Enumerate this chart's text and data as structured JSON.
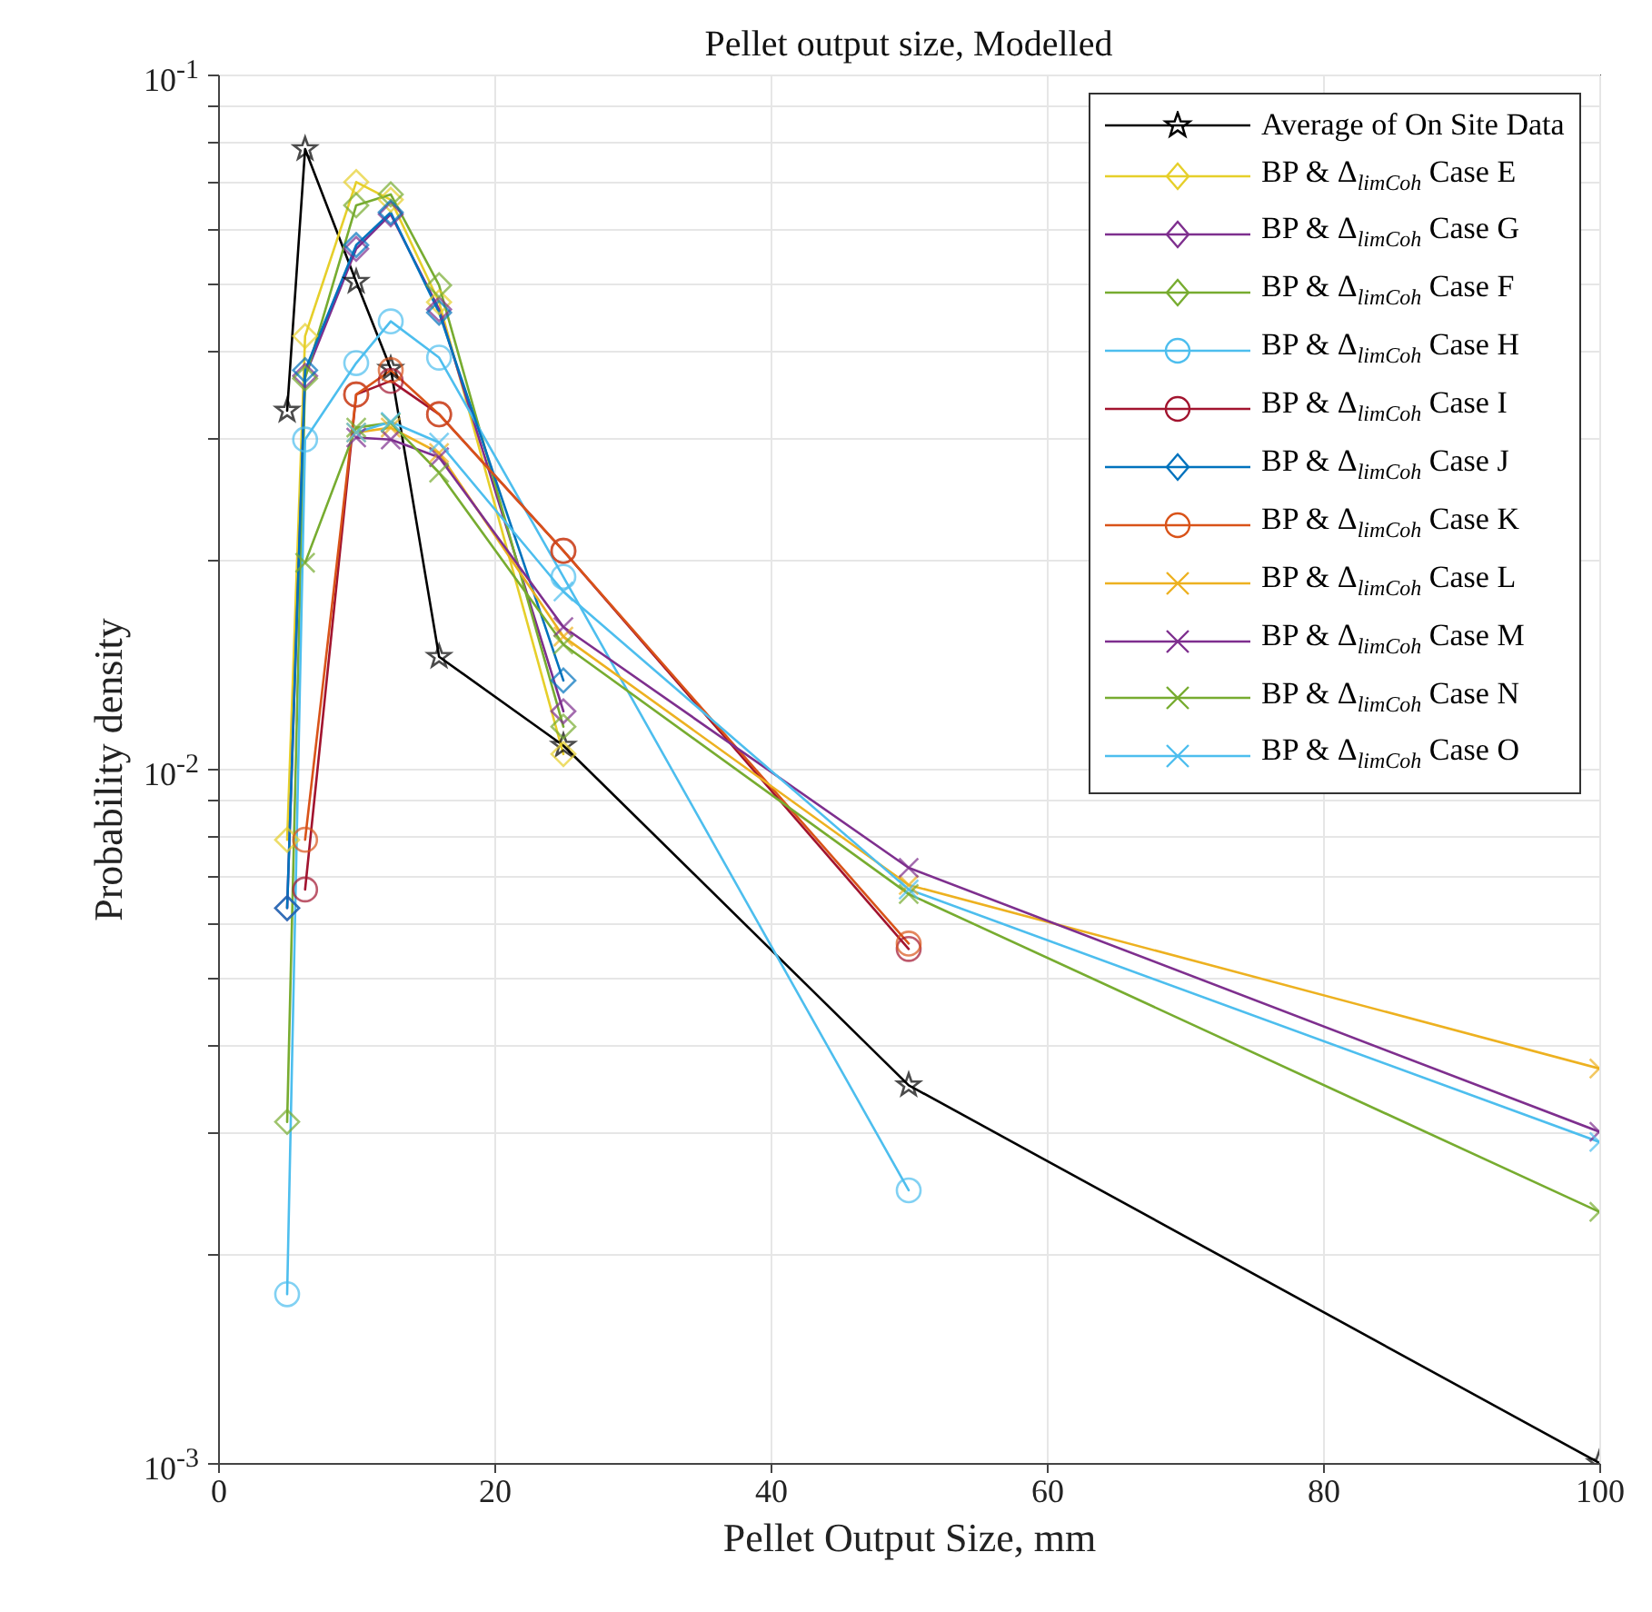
{
  "chart_data": {
    "type": "line",
    "title": "Pellet output size, Modelled",
    "xlabel": "Pellet Output Size, mm",
    "ylabel": "Probability density",
    "x": [
      5,
      6.3,
      10,
      12.5,
      16,
      25,
      50,
      100
    ],
    "series": [
      {
        "name": "Average of On Site Data",
        "color": "#000000",
        "marker": "star",
        "values": [
          0.0328,
          0.0781,
          0.0503,
          0.0377,
          0.0145,
          0.0108,
          0.0035,
          0.001
        ]
      },
      {
        "name": "BP & Δ$_{limCoh}$ Case E",
        "color": "#e6cf2a",
        "marker": "diamond",
        "values": [
          0.0079,
          0.042,
          0.07,
          0.066,
          0.047,
          0.0105,
          null,
          null
        ]
      },
      {
        "name": "BP & Δ$_{limCoh}$ Case G",
        "color": "#7e2f8e",
        "marker": "diamond",
        "values": [
          0.0063,
          0.0368,
          0.0561,
          0.0629,
          0.0459,
          0.0121,
          null,
          null
        ]
      },
      {
        "name": "BP & Δ$_{limCoh}$ Case F",
        "color": "#77ac30",
        "marker": "diamond",
        "values": [
          0.0031,
          0.0365,
          0.0648,
          0.0672,
          0.0497,
          0.0115,
          null,
          null
        ]
      },
      {
        "name": "BP & Δ$_{limCoh}$ Case H",
        "color": "#4dbeee",
        "marker": "circle",
        "values": [
          0.00175,
          0.0298,
          0.0384,
          0.0441,
          0.0391,
          0.0189,
          0.00247,
          null
        ]
      },
      {
        "name": "BP & Δ$_{limCoh}$ Case I",
        "color": "#a2142f",
        "marker": "circle",
        "values": [
          null,
          0.0067,
          0.0346,
          0.0362,
          0.0324,
          0.0206,
          0.0055,
          null
        ]
      },
      {
        "name": "BP & Δ$_{limCoh}$ Case J",
        "color": "#0072bd",
        "marker": "diamond",
        "values": [
          0.0063,
          0.0375,
          0.0568,
          0.0633,
          0.0454,
          0.0134,
          null,
          null
        ]
      },
      {
        "name": "BP & Δ$_{limCoh}$ Case K",
        "color": "#d95319",
        "marker": "circle",
        "values": [
          null,
          0.0079,
          0.0346,
          0.0375,
          0.0324,
          0.0206,
          0.0056,
          null
        ]
      },
      {
        "name": "BP & Δ$_{limCoh}$ Case L",
        "color": "#edb120",
        "marker": "cross",
        "values": [
          null,
          null,
          0.0305,
          0.031,
          0.0285,
          0.0155,
          0.0068,
          0.0037
        ]
      },
      {
        "name": "BP & Δ$_{limCoh}$ Case M",
        "color": "#7e2f8e",
        "marker": "cross",
        "values": [
          null,
          null,
          0.03,
          0.0298,
          0.0281,
          0.016,
          0.0072,
          0.003
        ]
      },
      {
        "name": "BP & Δ$_{limCoh}$ Case N",
        "color": "#77ac30",
        "marker": "cross",
        "values": [
          null,
          0.0198,
          0.031,
          0.0315,
          0.0267,
          0.0151,
          0.0066,
          0.0023
        ]
      },
      {
        "name": "BP & Δ$_{limCoh}$ Case O",
        "color": "#4dbeee",
        "marker": "cross",
        "values": [
          null,
          null,
          0.0305,
          0.0316,
          0.0295,
          0.018,
          0.0067,
          0.0029
        ]
      }
    ],
    "log": "y",
    "xlim": [
      0,
      100
    ],
    "xticks": [
      0,
      20,
      40,
      60,
      80,
      100
    ],
    "ylim": [
      0.001,
      0.1
    ],
    "yticks": [
      {
        "value": 0.001,
        "label": "10$^{-3}$"
      },
      {
        "value": 0.002,
        "label": null
      },
      {
        "value": 0.003,
        "label": null
      },
      {
        "value": 0.004,
        "label": null
      },
      {
        "value": 0.005,
        "label": null
      },
      {
        "value": 0.006,
        "label": null
      },
      {
        "value": 0.007,
        "label": null
      },
      {
        "value": 0.008,
        "label": null
      },
      {
        "value": 0.009,
        "label": null
      },
      {
        "value": 0.01,
        "label": "10$^{-2}$"
      },
      {
        "value": 0.02,
        "label": null
      },
      {
        "value": 0.03,
        "label": null
      },
      {
        "value": 0.04,
        "label": null
      },
      {
        "value": 0.05,
        "label": null
      },
      {
        "value": 0.06,
        "label": null
      },
      {
        "value": 0.07,
        "label": null
      },
      {
        "value": 0.08,
        "label": null
      },
      {
        "value": 0.09,
        "label": null
      },
      {
        "value": 0.1,
        "label": "10$^{-1}$"
      }
    ],
    "grid": true,
    "legend": "top right",
    "line_style": "solid"
  }
}
